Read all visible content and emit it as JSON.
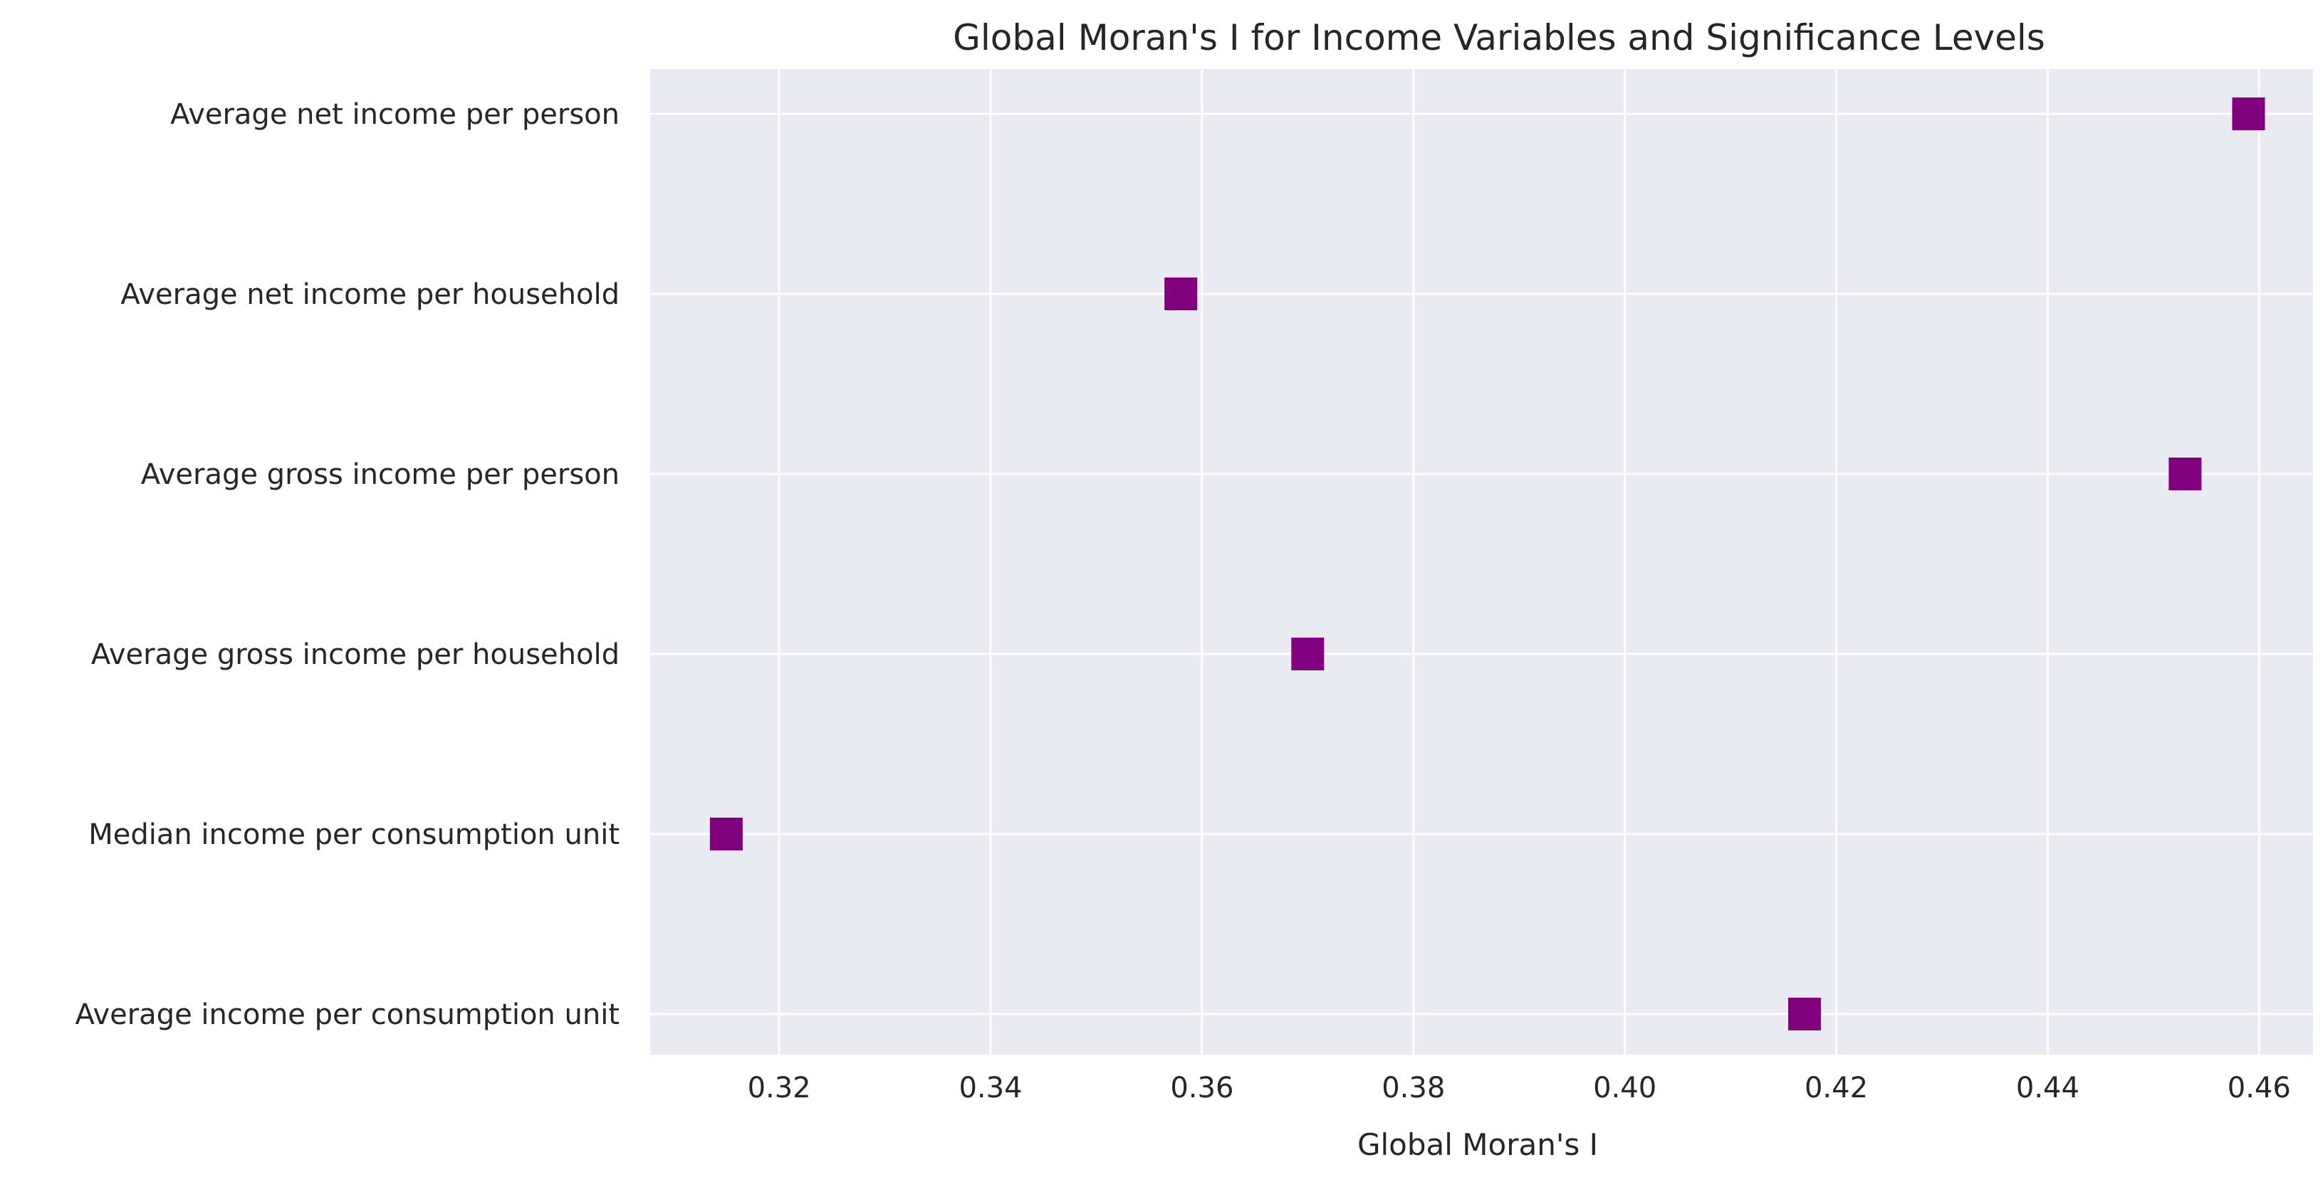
{
  "chart_data": {
    "type": "scatter",
    "title": "Global Moran's I for Income Variables and Significance Levels",
    "xlabel": "Global Moran's I",
    "ylabel": "",
    "xlim": [
      0.3078,
      0.4651
    ],
    "xticks": [
      0.32,
      0.34,
      0.36,
      0.38,
      0.4,
      0.42,
      0.44,
      0.46
    ],
    "xtick_labels": [
      "0.32",
      "0.34",
      "0.36",
      "0.38",
      "0.40",
      "0.42",
      "0.44",
      "0.46"
    ],
    "categories": [
      "Average net income per person",
      "Average net income per household",
      "Average gross income per person",
      "Average gross income per household",
      "Median income per consumption unit",
      "Average income per consumption unit"
    ],
    "values": [
      0.459,
      0.358,
      0.453,
      0.37,
      0.315,
      0.417
    ],
    "marker": "square",
    "marker_color": "#800080",
    "background_color": "#eaeaf2",
    "grid": true,
    "grid_color": "#ffffff"
  }
}
